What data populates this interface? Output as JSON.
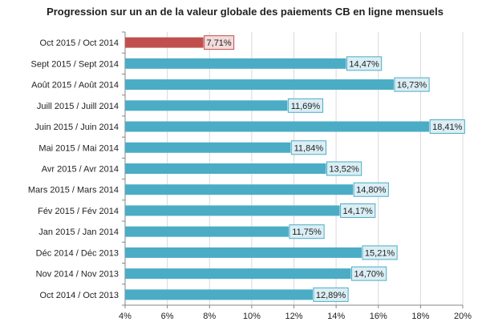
{
  "chart_data": {
    "type": "bar",
    "orientation": "horizontal",
    "title": "Progression sur un an de la valeur globale des paiements CB en ligne mensuels",
    "categories": [
      "Oct 2015 / Oct 2014",
      "Sept 2015 / Sept 2014",
      "Août 2015 / Août 2014",
      "Juill 2015 / Juill 2014",
      "Juin 2015 / Juin 2014",
      "Mai 2015 / Mai 2014",
      "Avr 2015 / Avr 2014",
      "Mars 2015 / Mars 2014",
      "Fév 2015 / Fév 2014",
      "Jan 2015 / Jan 2014",
      "Déc 2014 / Déc 2013",
      "Nov 2014 / Nov 2013",
      "Oct 2014 / Oct 2013"
    ],
    "values": [
      7.71,
      14.47,
      16.73,
      11.69,
      18.41,
      11.84,
      13.52,
      14.8,
      14.17,
      11.75,
      15.21,
      14.7,
      12.89
    ],
    "data_labels": [
      "7,71%",
      "14,47%",
      "16,73%",
      "11,69%",
      "18,41%",
      "11,84%",
      "13,52%",
      "14,80%",
      "14,17%",
      "11,75%",
      "15,21%",
      "14,70%",
      "12,89%"
    ],
    "xlim": [
      4,
      20
    ],
    "x_ticks": [
      4,
      6,
      8,
      10,
      12,
      14,
      16,
      18,
      20
    ],
    "x_tick_labels": [
      "4%",
      "6%",
      "8%",
      "10%",
      "12%",
      "14%",
      "16%",
      "18%",
      "20%"
    ],
    "grid": "vertical",
    "legend": "none",
    "colors": {
      "bar_default": "#4bacc6",
      "bar_highlight": "#c0504d",
      "label_bg_default": "#dbeef4",
      "label_border_default": "#4bacc6",
      "label_bg_highlight": "#f2dcdb",
      "label_border_highlight": "#c0504d",
      "grid": "#d9d9d9",
      "axis": "#868686"
    },
    "highlight_index": 0
  }
}
